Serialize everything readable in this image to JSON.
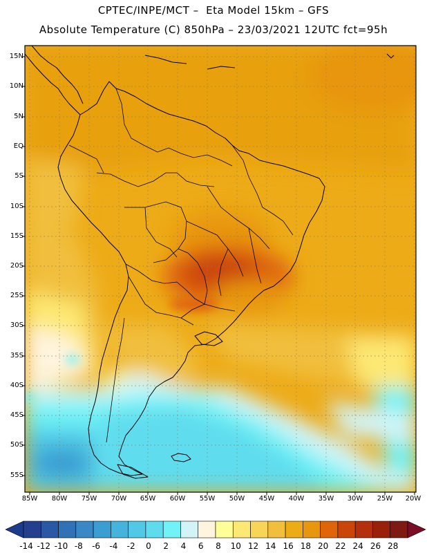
{
  "header": {
    "title_line1": "CPTEC/INPE/MCT –  Eta Model 15km – GFS",
    "title_line2": "Absolute Temperature (C) 850hPa – 23/03/2021 12UTC fct=95h"
  },
  "map": {
    "variable": "Absolute Temperature (C) at 850hPa",
    "lat_labels": [
      "15N",
      "10N",
      "5N",
      "EQ",
      "5S",
      "10S",
      "15S",
      "20S",
      "25S",
      "30S",
      "35S",
      "40S",
      "45S",
      "50S",
      "55S"
    ],
    "lat_values": [
      15,
      10,
      5,
      0,
      -5,
      -10,
      -15,
      -20,
      -25,
      -30,
      -35,
      -40,
      -45,
      -50,
      -55
    ],
    "lon_labels": [
      "85W",
      "80W",
      "75W",
      "70W",
      "65W",
      "60W",
      "55W",
      "50W",
      "45W",
      "40W",
      "35W",
      "30W",
      "25W",
      "20W"
    ],
    "lon_values": [
      -85,
      -80,
      -75,
      -70,
      -65,
      -60,
      -55,
      -50,
      -45,
      -40,
      -35,
      -30,
      -25,
      -20
    ],
    "lat_range": [
      -57.5,
      17.0
    ],
    "lon_range": [
      -85.5,
      -20.0
    ]
  },
  "colorbar": {
    "labels": [
      "-14",
      "-12",
      "-10",
      "-8",
      "-6",
      "-4",
      "-2",
      "0",
      "2",
      "4",
      "6",
      "8",
      "10",
      "12",
      "14",
      "16",
      "18",
      "20",
      "22",
      "24",
      "26",
      "28"
    ],
    "colors": [
      "#253f8f",
      "#2b58a4",
      "#3171b6",
      "#3788c4",
      "#3b9ed2",
      "#44b4dd",
      "#50c8e6",
      "#5edcee",
      "#70f2f6",
      "#d2f4f8",
      "#fff4de",
      "#ffff99",
      "#fde873",
      "#f8d558",
      "#f1bf3c",
      "#edab17",
      "#e8960e",
      "#e0650a",
      "#cb4509",
      "#b42f0b",
      "#9a2009",
      "#7e1a12"
    ],
    "under_color": "#1c3b8c",
    "over_color": "#7a0c26"
  }
}
